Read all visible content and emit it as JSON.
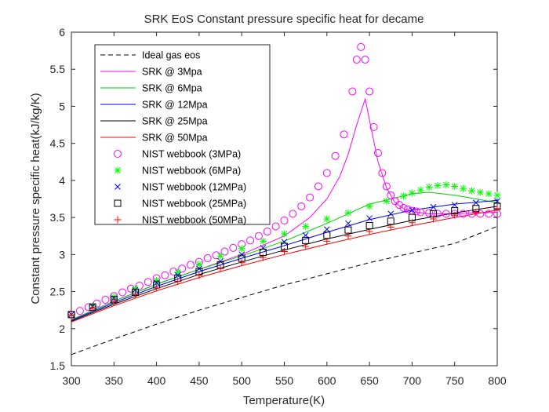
{
  "chart_data": {
    "type": "line",
    "title": "SRK EoS Constant pressure specific heat for decame",
    "xlabel": "Temperature(K)",
    "ylabel": "Constant pressure specific heat(kJ/kg/K)",
    "xlim": [
      300,
      800
    ],
    "ylim": [
      1.5,
      6
    ],
    "xticks": [
      "300",
      "350",
      "400",
      "450",
      "500",
      "550",
      "600",
      "650",
      "700",
      "750",
      "800"
    ],
    "yticks": [
      "1.5",
      "2",
      "2.5",
      "3",
      "3.5",
      "4",
      "4.5",
      "5",
      "5.5",
      "6"
    ],
    "grid": false,
    "legend_position": "top-left",
    "series": [
      {
        "name": "Ideal gas eos",
        "kind": "line",
        "dash": "dashed",
        "color": "#000000",
        "x": [
          300,
          350,
          400,
          450,
          500,
          550,
          600,
          650,
          700,
          750,
          800
        ],
        "y": [
          1.65,
          1.86,
          2.06,
          2.25,
          2.42,
          2.59,
          2.74,
          2.89,
          3.02,
          3.15,
          3.38
        ]
      },
      {
        "name": "SRK @ 3Mpa",
        "kind": "line",
        "dash": "solid",
        "color": "#ff00ff",
        "x": [
          300,
          350,
          400,
          450,
          500,
          550,
          580,
          600,
          615,
          625,
          635,
          645,
          652,
          660,
          670,
          680,
          690,
          700,
          720,
          750,
          800
        ],
        "y": [
          2.12,
          2.37,
          2.6,
          2.8,
          3.0,
          3.25,
          3.5,
          3.75,
          4.05,
          4.35,
          4.75,
          5.1,
          4.7,
          4.25,
          3.9,
          3.7,
          3.62,
          3.58,
          3.55,
          3.55,
          3.57
        ]
      },
      {
        "name": "SRK @ 6Mpa",
        "kind": "line",
        "dash": "solid",
        "color": "#00cc00",
        "x": [
          300,
          350,
          400,
          450,
          500,
          550,
          600,
          650,
          700,
          720,
          750,
          800
        ],
        "y": [
          2.12,
          2.37,
          2.6,
          2.8,
          2.98,
          3.18,
          3.42,
          3.68,
          3.82,
          3.84,
          3.8,
          3.7
        ]
      },
      {
        "name": "SRK @ 12Mpa",
        "kind": "line",
        "dash": "solid",
        "color": "#0000ff",
        "x": [
          300,
          350,
          400,
          450,
          500,
          550,
          600,
          650,
          700,
          750,
          800
        ],
        "y": [
          2.11,
          2.35,
          2.57,
          2.77,
          2.95,
          3.12,
          3.3,
          3.47,
          3.6,
          3.68,
          3.73
        ]
      },
      {
        "name": "SRK @ 25Mpa",
        "kind": "line",
        "dash": "solid",
        "color": "#000000",
        "x": [
          300,
          350,
          400,
          450,
          500,
          550,
          600,
          650,
          700,
          750,
          800
        ],
        "y": [
          2.1,
          2.33,
          2.54,
          2.73,
          2.9,
          3.06,
          3.21,
          3.34,
          3.46,
          3.56,
          3.65
        ]
      },
      {
        "name": "SRK @ 50Mpa",
        "kind": "line",
        "dash": "solid",
        "color": "#ff0000",
        "x": [
          300,
          350,
          400,
          450,
          500,
          550,
          600,
          650,
          700,
          750,
          800
        ],
        "y": [
          2.09,
          2.31,
          2.51,
          2.69,
          2.85,
          3.0,
          3.14,
          3.27,
          3.39,
          3.5,
          3.6
        ]
      },
      {
        "name": "NIST webbook (3MPa)",
        "kind": "marker",
        "marker": "circle",
        "color": "#ff00ff",
        "x": [
          300,
          310,
          320,
          330,
          340,
          350,
          360,
          370,
          380,
          390,
          400,
          410,
          420,
          430,
          440,
          450,
          460,
          470,
          480,
          490,
          500,
          510,
          520,
          530,
          540,
          550,
          560,
          570,
          580,
          590,
          600,
          610,
          620,
          630,
          635,
          640,
          645,
          650,
          655,
          660,
          665,
          670,
          675,
          680,
          685,
          690,
          695,
          700,
          705,
          710,
          720,
          730,
          740,
          750,
          760,
          770,
          780,
          790,
          800
        ],
        "y": [
          2.19,
          2.24,
          2.29,
          2.34,
          2.39,
          2.44,
          2.49,
          2.54,
          2.58,
          2.63,
          2.68,
          2.72,
          2.77,
          2.81,
          2.86,
          2.9,
          2.95,
          2.99,
          3.04,
          3.09,
          3.14,
          3.19,
          3.25,
          3.31,
          3.38,
          3.46,
          3.55,
          3.65,
          3.77,
          3.92,
          4.1,
          4.33,
          4.62,
          5.2,
          5.63,
          5.8,
          5.63,
          5.2,
          4.72,
          4.37,
          4.1,
          3.92,
          3.8,
          3.72,
          3.67,
          3.63,
          3.61,
          3.59,
          3.58,
          3.57,
          3.56,
          3.55,
          3.55,
          3.55,
          3.55,
          3.55,
          3.55,
          3.55,
          3.55
        ]
      },
      {
        "name": "NIST webbook (6MPa)",
        "kind": "marker",
        "marker": "asterisk",
        "color": "#00ff00",
        "x": [
          300,
          325,
          350,
          375,
          400,
          425,
          450,
          475,
          500,
          525,
          550,
          575,
          600,
          625,
          650,
          670,
          690,
          700,
          710,
          720,
          730,
          740,
          750,
          760,
          770,
          780,
          790,
          800
        ],
        "y": [
          2.19,
          2.31,
          2.43,
          2.54,
          2.65,
          2.76,
          2.87,
          2.98,
          3.08,
          3.18,
          3.28,
          3.38,
          3.48,
          3.56,
          3.65,
          3.72,
          3.79,
          3.83,
          3.87,
          3.91,
          3.93,
          3.94,
          3.92,
          3.89,
          3.86,
          3.84,
          3.82,
          3.8
        ]
      },
      {
        "name": "NIST webbook (12MPa)",
        "kind": "marker",
        "marker": "x",
        "color": "#0000ff",
        "x": [
          300,
          325,
          350,
          375,
          400,
          425,
          450,
          475,
          500,
          525,
          550,
          575,
          600,
          625,
          650,
          675,
          700,
          725,
          750,
          775,
          800
        ],
        "y": [
          2.19,
          2.3,
          2.41,
          2.52,
          2.62,
          2.72,
          2.81,
          2.91,
          3.0,
          3.09,
          3.17,
          3.26,
          3.34,
          3.42,
          3.49,
          3.55,
          3.6,
          3.64,
          3.67,
          3.7,
          3.72
        ]
      },
      {
        "name": "NIST webbook (25MPa)",
        "kind": "marker",
        "marker": "square",
        "color": "#000000",
        "x": [
          300,
          325,
          350,
          375,
          400,
          425,
          450,
          475,
          500,
          525,
          550,
          575,
          600,
          625,
          650,
          675,
          700,
          725,
          750,
          775,
          800
        ],
        "y": [
          2.19,
          2.29,
          2.39,
          2.49,
          2.59,
          2.68,
          2.77,
          2.86,
          2.95,
          3.03,
          3.11,
          3.19,
          3.26,
          3.33,
          3.39,
          3.45,
          3.5,
          3.55,
          3.59,
          3.62,
          3.65
        ]
      },
      {
        "name": "NIST webbook (50MPa)",
        "kind": "marker",
        "marker": "plus",
        "color": "#ff0000",
        "x": [
          300,
          325,
          350,
          375,
          400,
          425,
          450,
          475,
          500,
          525,
          550,
          575,
          600,
          625,
          650,
          675,
          700,
          725,
          750,
          775,
          800
        ],
        "y": [
          2.18,
          2.28,
          2.37,
          2.46,
          2.55,
          2.64,
          2.72,
          2.81,
          2.89,
          2.96,
          3.04,
          3.11,
          3.18,
          3.25,
          3.31,
          3.37,
          3.43,
          3.48,
          3.53,
          3.57,
          3.62
        ]
      }
    ]
  }
}
